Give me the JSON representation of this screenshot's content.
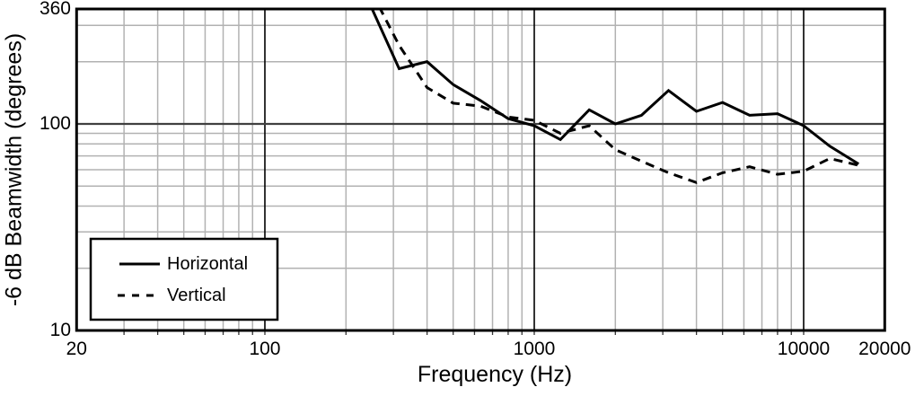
{
  "figure": {
    "background": "#ffffff",
    "border_color": "#000000",
    "minor_grid_color": "#b2b2b2",
    "major_vgrid_color": "#000000",
    "major_hgrid_color": "#404040",
    "curve_color": "#000000"
  },
  "chart_data": {
    "type": "line",
    "title": "",
    "xlabel": "Frequency (Hz)",
    "ylabel": "-6 dB Beamwidth (degrees)",
    "x_scale": "log",
    "y_scale": "log",
    "xlim": [
      20,
      20000
    ],
    "ylim": [
      10,
      360
    ],
    "grid": "log major+minor, on",
    "legend_position": "bottom-left",
    "x": [
      250,
      315,
      400,
      500,
      630,
      800,
      1000,
      1250,
      1600,
      2000,
      2500,
      3150,
      4000,
      5000,
      6300,
      8000,
      10000,
      12500,
      16000
    ],
    "series": [
      {
        "name": "Horizontal",
        "style": "solid",
        "values": [
          360,
          185,
          200,
          155,
          130,
          106,
          98,
          84,
          117,
          100,
          110,
          145,
          115,
          127,
          110,
          112,
          98,
          78,
          64
        ]
      },
      {
        "name": "Vertical",
        "style": "dashed",
        "values": [
          430,
          240,
          150,
          126,
          122,
          108,
          104,
          90,
          98,
          75,
          66,
          58,
          52,
          58,
          62,
          57,
          59,
          68,
          63
        ]
      }
    ],
    "x_ticks_labeled": [
      {
        "label": "20",
        "value": 20
      },
      {
        "label": "100",
        "value": 100
      },
      {
        "label": "1000",
        "value": 1000
      },
      {
        "label": "10000",
        "value": 10000
      },
      {
        "label": "20000",
        "value": 20000
      }
    ],
    "y_ticks_labeled": [
      {
        "label": "360",
        "value": 360
      },
      {
        "label": "100",
        "value": 100
      },
      {
        "label": "10",
        "value": 10
      }
    ]
  },
  "legend": {
    "items": [
      {
        "label": "Horizontal",
        "style": "solid"
      },
      {
        "label": "Vertical",
        "style": "dashed"
      }
    ]
  }
}
